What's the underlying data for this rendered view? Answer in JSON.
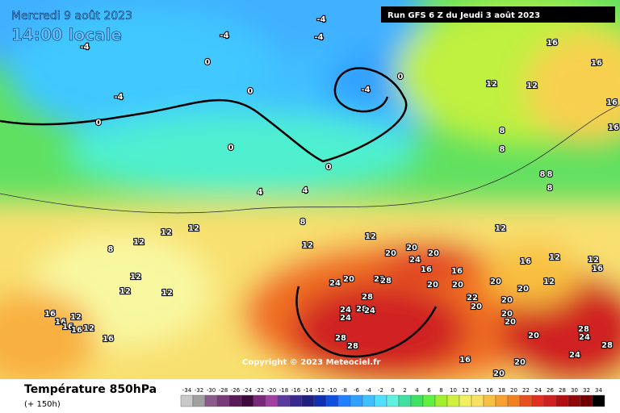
{
  "header": {
    "date": "Mercredi 9 août 2023",
    "time": "14:00 locale",
    "run": "Run GFS 6 Z du Jeudi 3 août 2023"
  },
  "map": {
    "copyright": "Copyright © 2023 Meteociel.fr",
    "labels": [
      -4,
      -4,
      -4,
      -4,
      0,
      -4,
      0,
      0,
      -4,
      0,
      0,
      0,
      4,
      4,
      8,
      16,
      16,
      16,
      16,
      12,
      12,
      8,
      8,
      8,
      8,
      8,
      12,
      12,
      12,
      8,
      12,
      12,
      12,
      20,
      20,
      20,
      24,
      16,
      16,
      16,
      12,
      12,
      16,
      12,
      12,
      12,
      24,
      20,
      22,
      28,
      20,
      20,
      20,
      12,
      20,
      28,
      24,
      28,
      24,
      24,
      22,
      20,
      20,
      20,
      20,
      16,
      12,
      16,
      16,
      16,
      12,
      16,
      28,
      28,
      20,
      28,
      24,
      28,
      24,
      16,
      20,
      20
    ]
  },
  "footer": {
    "title": "Température 850hPa",
    "subtitle": "(+ 150h)"
  },
  "colorbar": {
    "values": [
      -34,
      -32,
      -30,
      -28,
      -26,
      -24,
      -22,
      -20,
      -18,
      -16,
      -14,
      -12,
      -10,
      -8,
      -6,
      -4,
      -2,
      0,
      2,
      4,
      6,
      8,
      10,
      12,
      14,
      16,
      18,
      20,
      22,
      24,
      26,
      28,
      30,
      32,
      34
    ],
    "colors": [
      "#c8c8c8",
      "#a0a0a0",
      "#8c5a8c",
      "#7a3a7a",
      "#5a1a5a",
      "#3c0a3c",
      "#7a287a",
      "#a040a0",
      "#5a3aa0",
      "#3a2a90",
      "#202080",
      "#1030b0",
      "#1050e0",
      "#2080ff",
      "#30a0ff",
      "#40c0ff",
      "#50e0ff",
      "#60f0e0",
      "#40e0a0",
      "#40e060",
      "#60f040",
      "#a0f030",
      "#d0f040",
      "#f0f060",
      "#f8e060",
      "#f8c040",
      "#f8a030",
      "#f08020",
      "#e85020",
      "#e03020",
      "#d02020",
      "#b01010",
      "#900808",
      "#700000",
      "#000000"
    ]
  }
}
